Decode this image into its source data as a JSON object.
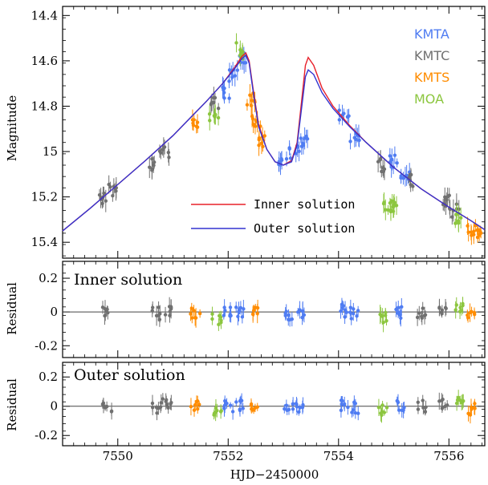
{
  "chart_data": [
    {
      "type": "scatter",
      "panel": "light-curve",
      "ylabel": "Magnitude",
      "y_inverted": true,
      "xlim": [
        7549.0,
        7556.65
      ],
      "ylim": [
        15.47,
        14.36
      ],
      "yticks": [
        14.4,
        14.6,
        14.8,
        15.0,
        15.2,
        15.4
      ],
      "ytick_labels": [
        "14.4",
        "14.6",
        "14.8",
        "15",
        "15.2",
        "15.4"
      ],
      "legend": {
        "placement": "top-right",
        "entries": [
          {
            "name": "KMTA",
            "color": "#4f7cf2"
          },
          {
            "name": "KMTC",
            "color": "#707070"
          },
          {
            "name": "KMTS",
            "color": "#ff8c00"
          },
          {
            "name": "MOA",
            "color": "#8cc63f"
          }
        ]
      },
      "model_legend": [
        {
          "name": "Inner solution",
          "color": "#e8202a"
        },
        {
          "name": "Outer solution",
          "color": "#3434d0"
        }
      ],
      "model_curves": {
        "inner": {
          "color": "#e8202a",
          "x": [
            7549.0,
            7549.5,
            7550.0,
            7550.5,
            7551.0,
            7551.3,
            7551.6,
            7551.9,
            7552.1,
            7552.25,
            7552.32,
            7552.38,
            7552.45,
            7552.55,
            7552.7,
            7552.85,
            7553.0,
            7553.15,
            7553.25,
            7553.33,
            7553.4,
            7553.45,
            7553.55,
            7553.7,
            7553.9,
            7554.2,
            7554.5,
            7555.0,
            7555.5,
            7556.0,
            7556.4,
            7556.65
          ],
          "y": [
            15.35,
            15.25,
            15.145,
            15.04,
            14.93,
            14.855,
            14.78,
            14.7,
            14.635,
            14.58,
            14.565,
            14.6,
            14.72,
            14.88,
            14.99,
            15.045,
            15.06,
            15.04,
            14.96,
            14.78,
            14.62,
            14.585,
            14.62,
            14.72,
            14.8,
            14.885,
            14.96,
            15.07,
            15.165,
            15.245,
            15.305,
            15.345
          ]
        },
        "outer": {
          "color": "#3434d0",
          "x": [
            7549.0,
            7549.5,
            7550.0,
            7550.5,
            7551.0,
            7551.3,
            7551.6,
            7551.9,
            7552.1,
            7552.25,
            7552.32,
            7552.38,
            7552.45,
            7552.55,
            7552.7,
            7552.85,
            7553.0,
            7553.15,
            7553.25,
            7553.33,
            7553.4,
            7553.45,
            7553.55,
            7553.7,
            7553.9,
            7554.2,
            7554.5,
            7555.0,
            7555.5,
            7556.0,
            7556.4,
            7556.65
          ],
          "y": [
            15.35,
            15.25,
            15.145,
            15.04,
            14.93,
            14.855,
            14.78,
            14.7,
            14.64,
            14.59,
            14.575,
            14.61,
            14.73,
            14.89,
            14.99,
            15.045,
            15.06,
            15.045,
            14.97,
            14.81,
            14.67,
            14.64,
            14.66,
            14.74,
            14.81,
            14.89,
            14.96,
            15.07,
            15.165,
            15.245,
            15.305,
            15.345
          ]
        }
      },
      "series": [
        {
          "name": "KMTA",
          "color": "#4f7cf2",
          "x": [
            7551.95,
            7552.1,
            7552.25,
            7553.0,
            7553.2,
            7553.4,
            7554.1,
            7554.3,
            7555.0,
            7555.2
          ],
          "y": [
            14.74,
            14.66,
            14.59,
            15.03,
            15.0,
            14.95,
            14.84,
            14.93,
            15.04,
            15.12
          ]
        },
        {
          "name": "KMTC",
          "color": "#707070",
          "x": [
            7549.75,
            7549.9,
            7550.65,
            7550.85,
            7551.75,
            7554.75,
            7555.35,
            7555.95,
            7556.1
          ],
          "y": [
            15.2,
            15.17,
            15.06,
            15.01,
            14.79,
            15.06,
            15.13,
            15.22,
            15.26
          ]
        },
        {
          "name": "KMTS",
          "color": "#ff8c00",
          "x": [
            7551.4,
            7552.4,
            7552.5,
            7552.6,
            7556.4,
            7556.6
          ],
          "y": [
            14.87,
            14.77,
            14.86,
            14.95,
            15.34,
            15.37
          ]
        },
        {
          "name": "MOA",
          "color": "#8cc63f",
          "x": [
            7551.75,
            7552.2,
            7554.9,
            7555.05,
            7556.2
          ],
          "y": [
            14.86,
            14.55,
            15.25,
            15.24,
            15.3
          ]
        }
      ]
    },
    {
      "type": "scatter",
      "panel": "residual-inner",
      "title": "Inner solution",
      "ylabel": "Residual",
      "ylim": [
        -0.27,
        0.3
      ],
      "yticks": [
        0.2,
        0,
        -0.2
      ],
      "ytick_labels": [
        "0.2",
        "0",
        "-0.2"
      ],
      "series": [
        {
          "name": "KMTA",
          "color": "#4f7cf2",
          "x": [
            7552.0,
            7552.2,
            7553.1,
            7553.3,
            7554.1,
            7554.3,
            7555.1
          ],
          "y": [
            0.0,
            0.01,
            -0.01,
            0.0,
            0.01,
            -0.01,
            0.0
          ]
        },
        {
          "name": "KMTC",
          "color": "#707070",
          "x": [
            7549.8,
            7550.7,
            7550.9,
            7555.5,
            7555.9
          ],
          "y": [
            0.0,
            -0.01,
            0.01,
            0.0,
            0.01
          ]
        },
        {
          "name": "KMTS",
          "color": "#ff8c00",
          "x": [
            7551.4,
            7552.5,
            7556.4
          ],
          "y": [
            0.0,
            0.0,
            -0.02
          ]
        },
        {
          "name": "MOA",
          "color": "#8cc63f",
          "x": [
            7551.8,
            7554.8,
            7556.2
          ],
          "y": [
            -0.05,
            -0.03,
            0.02
          ]
        }
      ]
    },
    {
      "type": "scatter",
      "panel": "residual-outer",
      "title": "Outer solution",
      "ylabel": "Residual",
      "xlabel": "HJD−2450000",
      "ylim": [
        -0.27,
        0.3
      ],
      "yticks": [
        0.2,
        0,
        -0.2
      ],
      "ytick_labels": [
        "0.2",
        "0",
        "-0.2"
      ],
      "xticks": [
        7550,
        7552,
        7554,
        7556
      ],
      "xtick_labels": [
        "7550",
        "7552",
        "7554",
        "7556"
      ],
      "series": [
        {
          "name": "KMTA",
          "color": "#4f7cf2",
          "x": [
            7552.0,
            7552.2,
            7553.1,
            7553.3,
            7554.1,
            7554.3,
            7555.1
          ],
          "y": [
            0.0,
            0.01,
            -0.01,
            0.0,
            0.01,
            -0.01,
            0.0
          ]
        },
        {
          "name": "KMTC",
          "color": "#707070",
          "x": [
            7549.8,
            7550.7,
            7550.9,
            7555.5,
            7555.9
          ],
          "y": [
            0.0,
            -0.01,
            0.01,
            0.0,
            0.01
          ]
        },
        {
          "name": "KMTS",
          "color": "#ff8c00",
          "x": [
            7551.4,
            7552.5,
            7556.4
          ],
          "y": [
            0.0,
            0.0,
            -0.02
          ]
        },
        {
          "name": "MOA",
          "color": "#8cc63f",
          "x": [
            7551.8,
            7554.8,
            7556.2
          ],
          "y": [
            -0.05,
            -0.03,
            0.02
          ]
        }
      ]
    }
  ]
}
